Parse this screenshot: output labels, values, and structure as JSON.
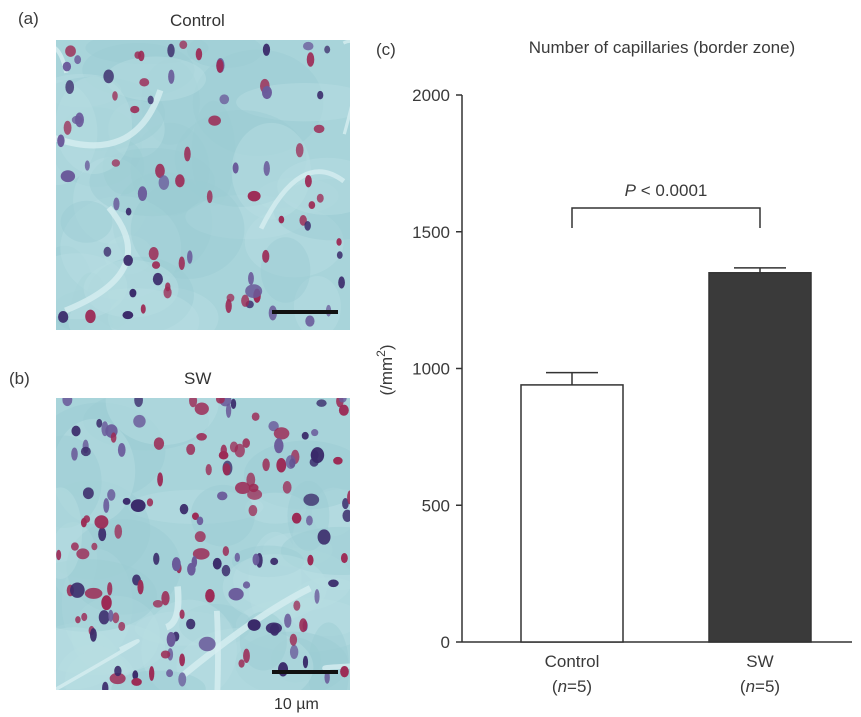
{
  "panel_a": {
    "letter": "(a)",
    "title": "Control"
  },
  "panel_b": {
    "letter": "(b)",
    "title": "SW"
  },
  "panel_c": {
    "letter": "(c)"
  },
  "scale_bar": {
    "text": "10 µm"
  },
  "colors": {
    "tissue_background": "#a8d4da",
    "nucleus_pink": "#9c2a55",
    "nucleus_purple": "#3a2a6a",
    "sw_bar": "#3a3a3a",
    "control_bar": "#ffffff"
  },
  "chart_data": {
    "type": "bar",
    "title": "Number of capillaries (border zone)",
    "ylabel_main": "(/mm",
    "ylabel_sup": "2",
    "ylabel_close": ")",
    "ylim": [
      0,
      2000
    ],
    "yticks": [
      0,
      500,
      1000,
      1500,
      2000
    ],
    "categories": [
      {
        "name": "Control",
        "n_label": "(n=5)",
        "n_prefix": "(",
        "n_var": "n",
        "n_rest": "=5)"
      },
      {
        "name": "SW",
        "n_label": "(n=5)",
        "n_prefix": "(",
        "n_var": "n",
        "n_rest": "=5)"
      }
    ],
    "values": [
      940,
      1350
    ],
    "errors": [
      45,
      18
    ],
    "significance": {
      "text_var": "P",
      "text_rest": " < 0.0001",
      "between": [
        0,
        1
      ]
    }
  }
}
